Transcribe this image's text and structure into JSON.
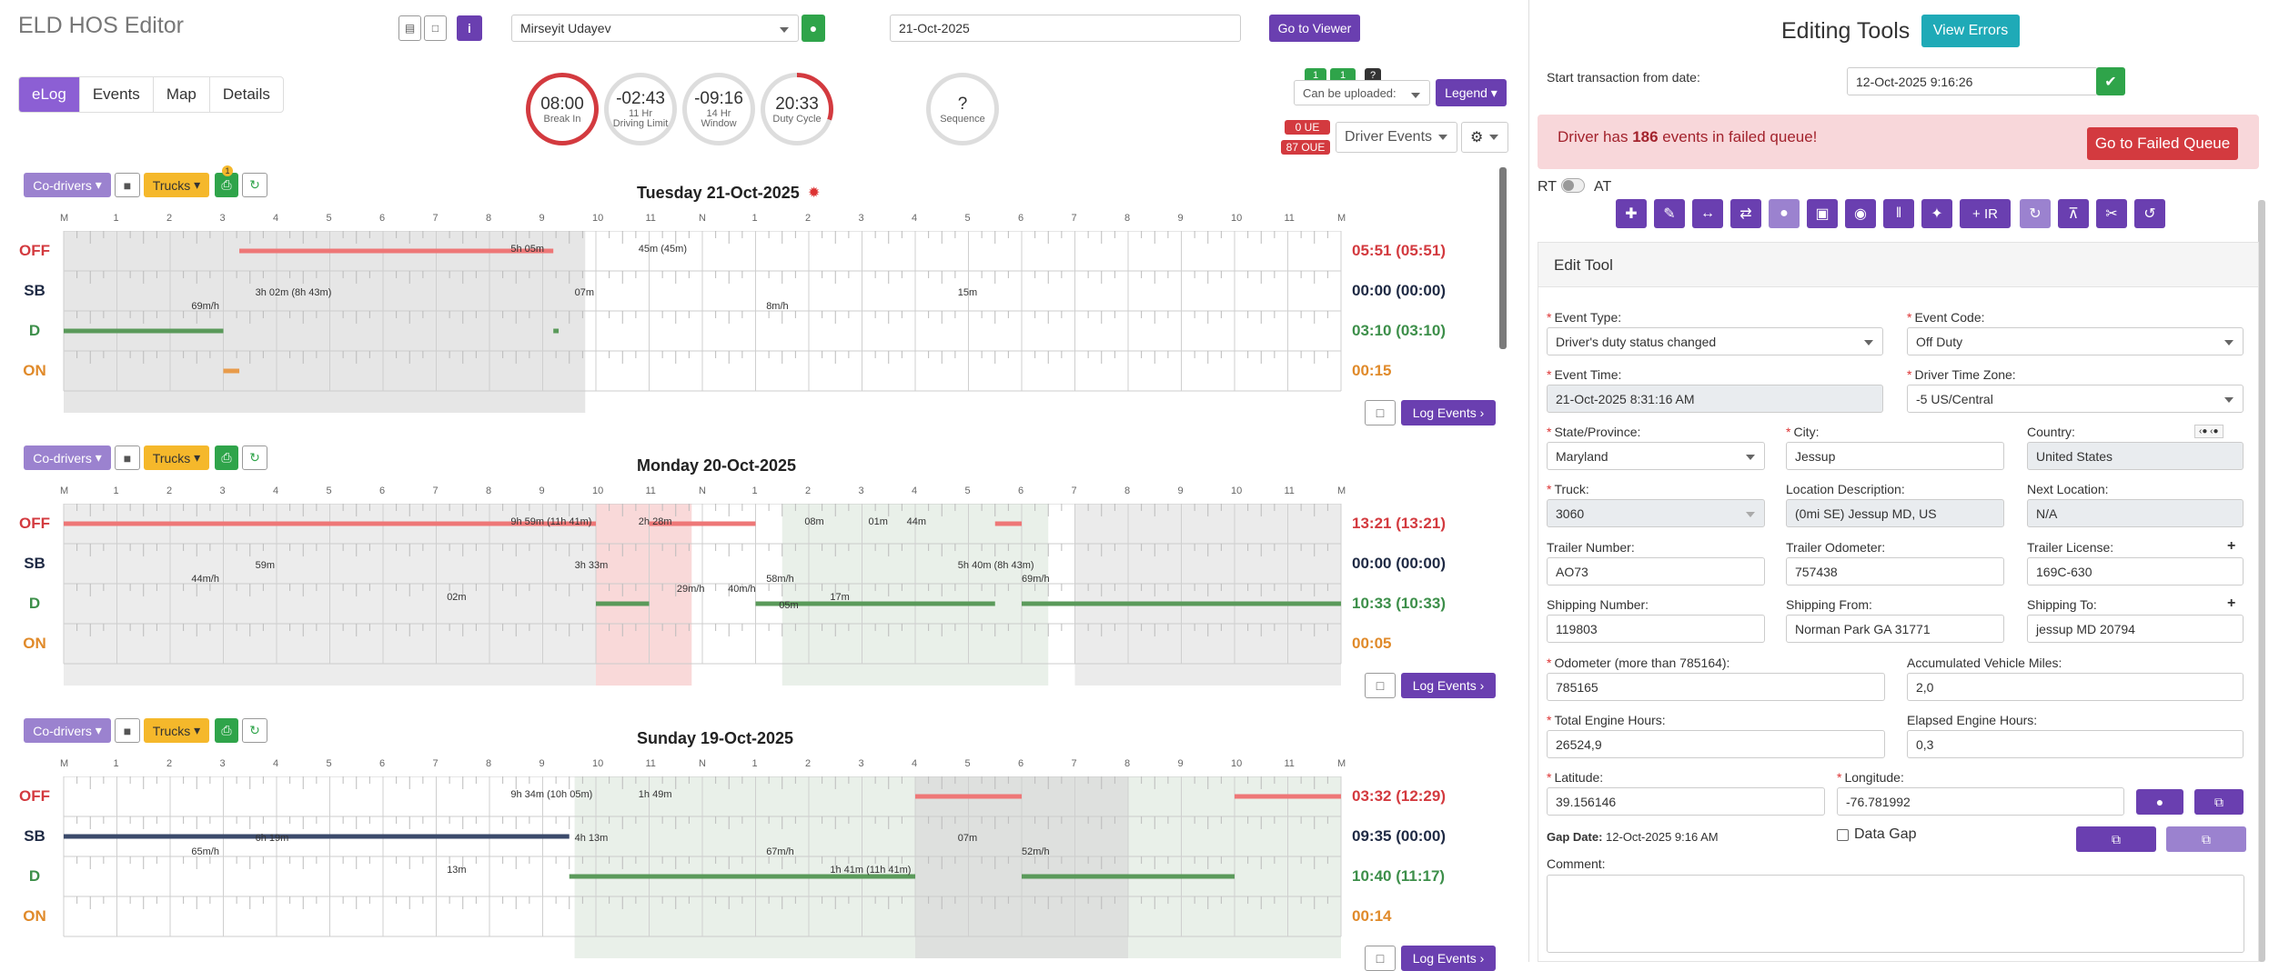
{
  "app": {
    "title": "ELD HOS Editor",
    "driver": "Mirseyit Udayev",
    "date": "21-Oct-2025",
    "go_viewer": "Go to Viewer"
  },
  "tabs": [
    "eLog",
    "Events",
    "Map",
    "Details"
  ],
  "gauges": [
    {
      "value": "08:00",
      "sub": "Break In",
      "color": "#d33a3f",
      "level": 1.0
    },
    {
      "value": "-02:43",
      "sub": "11 Hr\nDriving Limit",
      "color": "#ddd",
      "level": 0
    },
    {
      "value": "-09:16",
      "sub": "14 Hr\nWindow",
      "color": "#ddd",
      "level": 0
    },
    {
      "value": "20:33",
      "sub": "Duty Cycle",
      "color": "#d33a3f",
      "level": 0.3
    },
    {
      "value": "?",
      "sub": "Sequence",
      "color": "#ddd",
      "level": 0
    }
  ],
  "top_right": {
    "badge1": "1",
    "badge2": "1",
    "badge3": "?",
    "can_upload": "Can be uploaded:",
    "legend": "Legend",
    "ue": "0 UE",
    "oue": "87 OUE",
    "driver_events": "Driver Events"
  },
  "row_labels": [
    "OFF",
    "SB",
    "D",
    "ON"
  ],
  "tick_labels": [
    "M",
    "1",
    "2",
    "3",
    "4",
    "5",
    "6",
    "7",
    "8",
    "9",
    "10",
    "11",
    "N",
    "1",
    "2",
    "3",
    "4",
    "5",
    "6",
    "7",
    "8",
    "9",
    "10",
    "11",
    "M"
  ],
  "days": [
    {
      "title": "Tuesday 21-Oct-2025",
      "totals": [
        "05:51 (05:51)",
        "00:00 (00:00)",
        "03:10 (03:10)",
        "00:15"
      ],
      "notes": [
        "5h 05m",
        "45m (45m)",
        "3h 02m (8h 43m)",
        "69m/h",
        "07m",
        "8m/h",
        "15m"
      ]
    },
    {
      "title": "Monday 20-Oct-2025",
      "totals": [
        "13:21 (13:21)",
        "00:00 (00:00)",
        "10:33 (10:33)",
        "00:05"
      ],
      "notes": [
        "9h 59m (11h 41m)",
        "2h 28m",
        "59m",
        "44m/h",
        "3h 33m",
        "58m/h",
        "5h 40m (8h 43m)",
        "69m/h",
        "17m",
        "02m",
        "29m/h",
        "40m/h",
        "05m",
        "01m",
        "44m",
        "08m"
      ]
    },
    {
      "title": "Sunday 19-Oct-2025",
      "totals": [
        "03:32 (12:29)",
        "09:35 (00:00)",
        "10:40 (11:17)",
        "00:14"
      ],
      "notes": [
        "9h 34m (10h 05m)",
        "1h 49m",
        "6h 19m",
        "65m/h",
        "4h 13m",
        "67m/h",
        "07m",
        "52m/h",
        "1h 41m (11h 41m)",
        "13m"
      ]
    }
  ],
  "day_buttons": {
    "codrivers": "Co-drivers",
    "trucks": "Trucks",
    "log_events": "Log Events",
    "badge": "1"
  },
  "editing": {
    "title": "Editing Tools",
    "view_errors": "View Errors",
    "start_label": "Start transaction from date:",
    "start_value": "12-Oct-2025 9:16:26",
    "failed_pre": "Driver has ",
    "failed_count": "186",
    "failed_post": " events in failed queue!",
    "failed_btn": "Go to Failed Queue",
    "rt": "RT",
    "at": "AT",
    "ir": "+ IR",
    "edit_tool": "Edit Tool",
    "event_type_l": "Event Type:",
    "event_type": "Driver's duty status changed",
    "event_code_l": "Event Code:",
    "event_code": "Off Duty",
    "event_time_l": "Event Time:",
    "event_time": "21-Oct-2025 8:31:16 AM",
    "tz_l": "Driver Time Zone:",
    "tz": "-5 US/Central",
    "state_l": "State/Province:",
    "state": "Maryland",
    "city_l": "City:",
    "city": "Jessup",
    "country_l": "Country:",
    "country": "United States",
    "truck_l": "Truck:",
    "truck": "3060",
    "locdesc_l": "Location Description:",
    "locdesc": "(0mi SE) Jessup MD, US",
    "nextloc_l": "Next Location:",
    "nextloc": "N/A",
    "trailer_l": "Trailer Number:",
    "trailer": "AO73",
    "trodo_l": "Trailer Odometer:",
    "trodo": "757438",
    "trlic_l": "Trailer License:",
    "trlic": "169C-630",
    "shipnum_l": "Shipping Number:",
    "shipnum": "119803",
    "shipfrom_l": "Shipping From:",
    "shipfrom": "Norman Park GA 31771",
    "shipto_l": "Shipping To:",
    "shipto": "jessup MD 20794",
    "odo_l": "Odometer (more than 785164):",
    "odo": "785165",
    "accmiles_l": "Accumulated Vehicle Miles:",
    "accmiles": "2,0",
    "teh_l": "Total Engine Hours:",
    "teh": "26524,9",
    "eeh_l": "Elapsed Engine Hours:",
    "eeh": "0,3",
    "lat_l": "Latitude:",
    "lat": "39.156146",
    "lon_l": "Longitude:",
    "lon": "-76.781992",
    "gap_l": "Gap Date:",
    "gap": "12-Oct-2025 9:16 AM",
    "datagap": "Data Gap",
    "comment_l": "Comment:"
  }
}
